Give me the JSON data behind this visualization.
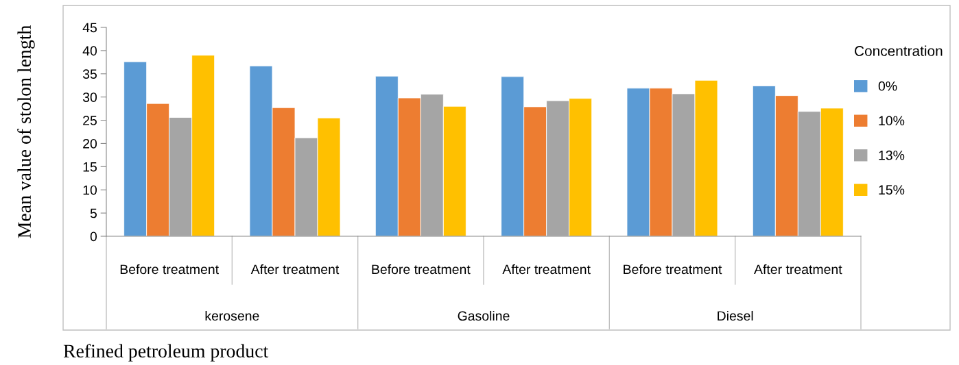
{
  "chart_data": {
    "type": "bar",
    "xlabel": "Refined petroleum product",
    "ylabel": "Mean value of stolon length",
    "legend_title": "Concentration",
    "categories": [
      "Before treatment",
      "After treatment",
      "Before treatment",
      "After treatment",
      "Before treatment",
      "After treatment"
    ],
    "series": [
      {
        "name": "0%",
        "color": "#5b9bd5",
        "values": [
          37.6,
          36.7,
          34.5,
          34.4,
          31.9,
          32.4
        ]
      },
      {
        "name": "10%",
        "color": "#ed7d31",
        "values": [
          28.6,
          27.7,
          29.8,
          27.9,
          31.9,
          30.3
        ]
      },
      {
        "name": "13%",
        "color": "#a5a5a5",
        "values": [
          25.6,
          21.2,
          30.6,
          29.2,
          30.7,
          26.9
        ]
      },
      {
        "name": "15%",
        "color": "#ffc000",
        "values": [
          39.0,
          25.5,
          28.0,
          29.7,
          33.6,
          27.6
        ]
      }
    ],
    "annotations": [
      "kerosene",
      "Gasoline",
      "Diesel"
    ],
    "ylim": [
      0,
      45
    ],
    "yticks": [
      0,
      5,
      10,
      15,
      20,
      25,
      30,
      35,
      40,
      45
    ],
    "grid": false,
    "legend": "right"
  }
}
